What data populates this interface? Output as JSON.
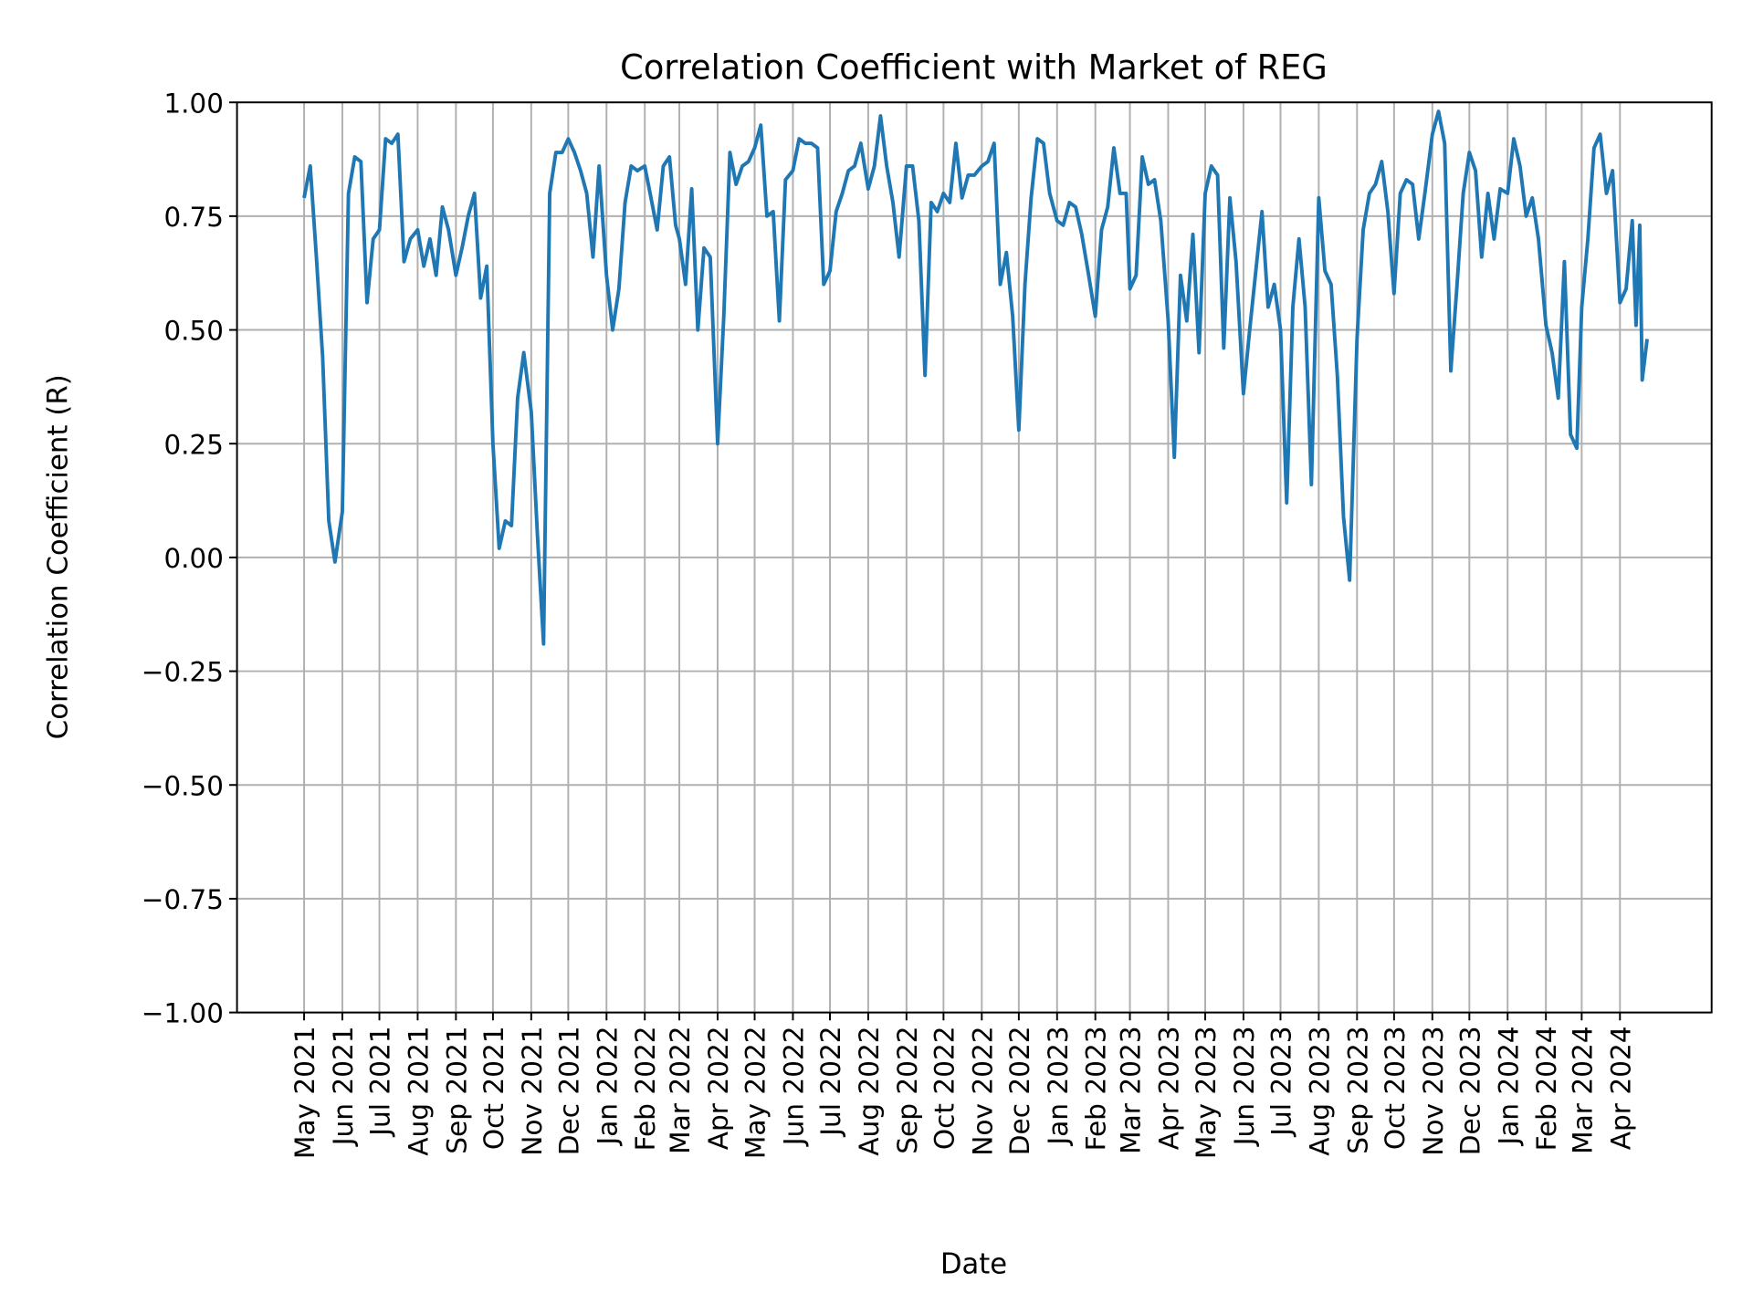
{
  "chart_data": {
    "type": "line",
    "title": "Correlation Coefficient with Market of REG",
    "xlabel": "Date",
    "ylabel": "Correlation Coefficient (R)",
    "ylim": [
      -1.0,
      1.0
    ],
    "yticks": [
      "1.00",
      "0.75",
      "0.50",
      "0.25",
      "0.00",
      "−0.25",
      "−0.50",
      "−0.75",
      "−1.00"
    ],
    "ytick_values": [
      1.0,
      0.75,
      0.5,
      0.25,
      0.0,
      -0.25,
      -0.5,
      -0.75,
      -1.0
    ],
    "xticks": [
      "May 2021",
      "Jun 2021",
      "Jul 2021",
      "Aug 2021",
      "Sep 2021",
      "Oct 2021",
      "Nov 2021",
      "Dec 2021",
      "Jan 2022",
      "Feb 2022",
      "Mar 2022",
      "Apr 2022",
      "May 2022",
      "Jun 2022",
      "Jul 2022",
      "Aug 2022",
      "Sep 2022",
      "Oct 2022",
      "Nov 2022",
      "Dec 2022",
      "Jan 2023",
      "Feb 2023",
      "Mar 2023",
      "Apr 2023",
      "May 2023",
      "Jun 2023",
      "Jul 2023",
      "Aug 2023",
      "Sep 2023",
      "Oct 2023",
      "Nov 2023",
      "Dec 2023",
      "Jan 2024",
      "Feb 2024",
      "Mar 2024",
      "Apr 2024"
    ],
    "xtick_dates": [
      "2021-05-01",
      "2021-06-01",
      "2021-07-01",
      "2021-08-01",
      "2021-09-01",
      "2021-10-01",
      "2021-11-01",
      "2021-12-01",
      "2022-01-01",
      "2022-02-01",
      "2022-03-01",
      "2022-04-01",
      "2022-05-01",
      "2022-06-01",
      "2022-07-01",
      "2022-08-01",
      "2022-09-01",
      "2022-10-01",
      "2022-11-01",
      "2022-12-01",
      "2023-01-01",
      "2023-02-01",
      "2023-03-01",
      "2023-04-01",
      "2023-05-01",
      "2023-06-01",
      "2023-07-01",
      "2023-08-01",
      "2023-09-01",
      "2023-10-01",
      "2023-11-01",
      "2023-12-01",
      "2024-01-01",
      "2024-02-01",
      "2024-03-01",
      "2024-04-01"
    ],
    "grid": true,
    "line_color": "#1f77b4",
    "points": [
      [
        "2021-05-01",
        0.79
      ],
      [
        "2021-05-06",
        0.86
      ],
      [
        "2021-05-11",
        0.66
      ],
      [
        "2021-05-16",
        0.44
      ],
      [
        "2021-05-21",
        0.08
      ],
      [
        "2021-05-26",
        -0.01
      ],
      [
        "2021-06-01",
        0.1
      ],
      [
        "2021-06-06",
        0.8
      ],
      [
        "2021-06-11",
        0.88
      ],
      [
        "2021-06-16",
        0.87
      ],
      [
        "2021-06-21",
        0.56
      ],
      [
        "2021-06-26",
        0.7
      ],
      [
        "2021-07-01",
        0.72
      ],
      [
        "2021-07-06",
        0.92
      ],
      [
        "2021-07-11",
        0.91
      ],
      [
        "2021-07-16",
        0.93
      ],
      [
        "2021-07-21",
        0.65
      ],
      [
        "2021-07-26",
        0.7
      ],
      [
        "2021-08-01",
        0.72
      ],
      [
        "2021-08-06",
        0.64
      ],
      [
        "2021-08-11",
        0.7
      ],
      [
        "2021-08-16",
        0.62
      ],
      [
        "2021-08-21",
        0.77
      ],
      [
        "2021-08-26",
        0.72
      ],
      [
        "2021-09-01",
        0.62
      ],
      [
        "2021-09-06",
        0.68
      ],
      [
        "2021-09-11",
        0.75
      ],
      [
        "2021-09-16",
        0.8
      ],
      [
        "2021-09-21",
        0.57
      ],
      [
        "2021-09-26",
        0.64
      ],
      [
        "2021-10-01",
        0.25
      ],
      [
        "2021-10-06",
        0.02
      ],
      [
        "2021-10-11",
        0.08
      ],
      [
        "2021-10-16",
        0.07
      ],
      [
        "2021-10-21",
        0.35
      ],
      [
        "2021-10-26",
        0.45
      ],
      [
        "2021-11-01",
        0.32
      ],
      [
        "2021-11-06",
        0.05
      ],
      [
        "2021-11-11",
        -0.19
      ],
      [
        "2021-11-16",
        0.8
      ],
      [
        "2021-11-21",
        0.89
      ],
      [
        "2021-11-26",
        0.89
      ],
      [
        "2021-12-01",
        0.92
      ],
      [
        "2021-12-06",
        0.89
      ],
      [
        "2021-12-11",
        0.85
      ],
      [
        "2021-12-16",
        0.8
      ],
      [
        "2021-12-21",
        0.66
      ],
      [
        "2021-12-26",
        0.86
      ],
      [
        "2022-01-01",
        0.62
      ],
      [
        "2022-01-06",
        0.5
      ],
      [
        "2022-01-11",
        0.59
      ],
      [
        "2022-01-16",
        0.78
      ],
      [
        "2022-01-21",
        0.86
      ],
      [
        "2022-01-26",
        0.85
      ],
      [
        "2022-02-01",
        0.86
      ],
      [
        "2022-02-06",
        0.79
      ],
      [
        "2022-02-11",
        0.72
      ],
      [
        "2022-02-16",
        0.86
      ],
      [
        "2022-02-21",
        0.88
      ],
      [
        "2022-02-26",
        0.73
      ],
      [
        "2022-03-01",
        0.7
      ],
      [
        "2022-03-06",
        0.6
      ],
      [
        "2022-03-11",
        0.81
      ],
      [
        "2022-03-16",
        0.5
      ],
      [
        "2022-03-21",
        0.68
      ],
      [
        "2022-03-26",
        0.66
      ],
      [
        "2022-04-01",
        0.25
      ],
      [
        "2022-04-06",
        0.53
      ],
      [
        "2022-04-11",
        0.89
      ],
      [
        "2022-04-16",
        0.82
      ],
      [
        "2022-04-21",
        0.86
      ],
      [
        "2022-04-26",
        0.87
      ],
      [
        "2022-05-01",
        0.9
      ],
      [
        "2022-05-06",
        0.95
      ],
      [
        "2022-05-11",
        0.75
      ],
      [
        "2022-05-16",
        0.76
      ],
      [
        "2022-05-21",
        0.52
      ],
      [
        "2022-05-26",
        0.83
      ],
      [
        "2022-06-01",
        0.85
      ],
      [
        "2022-06-06",
        0.92
      ],
      [
        "2022-06-11",
        0.91
      ],
      [
        "2022-06-16",
        0.91
      ],
      [
        "2022-06-21",
        0.9
      ],
      [
        "2022-06-26",
        0.6
      ],
      [
        "2022-07-01",
        0.63
      ],
      [
        "2022-07-06",
        0.76
      ],
      [
        "2022-07-11",
        0.8
      ],
      [
        "2022-07-16",
        0.85
      ],
      [
        "2022-07-21",
        0.86
      ],
      [
        "2022-07-26",
        0.91
      ],
      [
        "2022-08-01",
        0.81
      ],
      [
        "2022-08-06",
        0.86
      ],
      [
        "2022-08-11",
        0.97
      ],
      [
        "2022-08-16",
        0.86
      ],
      [
        "2022-08-21",
        0.78
      ],
      [
        "2022-08-26",
        0.66
      ],
      [
        "2022-09-01",
        0.86
      ],
      [
        "2022-09-06",
        0.86
      ],
      [
        "2022-09-11",
        0.74
      ],
      [
        "2022-09-16",
        0.4
      ],
      [
        "2022-09-21",
        0.78
      ],
      [
        "2022-09-26",
        0.76
      ],
      [
        "2022-10-01",
        0.8
      ],
      [
        "2022-10-06",
        0.78
      ],
      [
        "2022-10-11",
        0.91
      ],
      [
        "2022-10-16",
        0.79
      ],
      [
        "2022-10-21",
        0.84
      ],
      [
        "2022-10-26",
        0.84
      ],
      [
        "2022-11-01",
        0.86
      ],
      [
        "2022-11-06",
        0.87
      ],
      [
        "2022-11-11",
        0.91
      ],
      [
        "2022-11-16",
        0.6
      ],
      [
        "2022-11-21",
        0.67
      ],
      [
        "2022-11-26",
        0.53
      ],
      [
        "2022-12-01",
        0.28
      ],
      [
        "2022-12-06",
        0.6
      ],
      [
        "2022-12-11",
        0.79
      ],
      [
        "2022-12-16",
        0.92
      ],
      [
        "2022-12-21",
        0.91
      ],
      [
        "2022-12-26",
        0.8
      ],
      [
        "2023-01-01",
        0.74
      ],
      [
        "2023-01-06",
        0.73
      ],
      [
        "2023-01-11",
        0.78
      ],
      [
        "2023-01-16",
        0.77
      ],
      [
        "2023-01-21",
        0.71
      ],
      [
        "2023-01-26",
        0.63
      ],
      [
        "2023-02-01",
        0.53
      ],
      [
        "2023-02-06",
        0.72
      ],
      [
        "2023-02-11",
        0.77
      ],
      [
        "2023-02-16",
        0.9
      ],
      [
        "2023-02-21",
        0.8
      ],
      [
        "2023-02-26",
        0.8
      ],
      [
        "2023-03-01",
        0.59
      ],
      [
        "2023-03-06",
        0.62
      ],
      [
        "2023-03-11",
        0.88
      ],
      [
        "2023-03-16",
        0.82
      ],
      [
        "2023-03-21",
        0.83
      ],
      [
        "2023-03-26",
        0.74
      ],
      [
        "2023-04-01",
        0.52
      ],
      [
        "2023-04-06",
        0.22
      ],
      [
        "2023-04-11",
        0.62
      ],
      [
        "2023-04-16",
        0.52
      ],
      [
        "2023-04-21",
        0.71
      ],
      [
        "2023-04-26",
        0.45
      ],
      [
        "2023-05-01",
        0.8
      ],
      [
        "2023-05-06",
        0.86
      ],
      [
        "2023-05-11",
        0.84
      ],
      [
        "2023-05-16",
        0.46
      ],
      [
        "2023-05-21",
        0.79
      ],
      [
        "2023-05-26",
        0.65
      ],
      [
        "2023-06-01",
        0.36
      ],
      [
        "2023-06-06",
        0.5
      ],
      [
        "2023-06-11",
        0.63
      ],
      [
        "2023-06-16",
        0.76
      ],
      [
        "2023-06-21",
        0.55
      ],
      [
        "2023-06-26",
        0.6
      ],
      [
        "2023-07-01",
        0.5
      ],
      [
        "2023-07-06",
        0.12
      ],
      [
        "2023-07-11",
        0.55
      ],
      [
        "2023-07-16",
        0.7
      ],
      [
        "2023-07-21",
        0.55
      ],
      [
        "2023-07-26",
        0.16
      ],
      [
        "2023-08-01",
        0.79
      ],
      [
        "2023-08-06",
        0.63
      ],
      [
        "2023-08-11",
        0.6
      ],
      [
        "2023-08-16",
        0.4
      ],
      [
        "2023-08-21",
        0.09
      ],
      [
        "2023-08-26",
        -0.05
      ],
      [
        "2023-09-01",
        0.48
      ],
      [
        "2023-09-06",
        0.72
      ],
      [
        "2023-09-11",
        0.8
      ],
      [
        "2023-09-16",
        0.82
      ],
      [
        "2023-09-21",
        0.87
      ],
      [
        "2023-09-26",
        0.76
      ],
      [
        "2023-10-01",
        0.58
      ],
      [
        "2023-10-06",
        0.8
      ],
      [
        "2023-10-11",
        0.83
      ],
      [
        "2023-10-16",
        0.82
      ],
      [
        "2023-10-21",
        0.7
      ],
      [
        "2023-10-26",
        0.8
      ],
      [
        "2023-11-01",
        0.93
      ],
      [
        "2023-11-06",
        0.98
      ],
      [
        "2023-11-11",
        0.91
      ],
      [
        "2023-11-16",
        0.41
      ],
      [
        "2023-11-21",
        0.6
      ],
      [
        "2023-11-26",
        0.8
      ],
      [
        "2023-12-01",
        0.89
      ],
      [
        "2023-12-06",
        0.85
      ],
      [
        "2023-12-11",
        0.66
      ],
      [
        "2023-12-16",
        0.8
      ],
      [
        "2023-12-21",
        0.7
      ],
      [
        "2023-12-26",
        0.81
      ],
      [
        "2024-01-01",
        0.8
      ],
      [
        "2024-01-06",
        0.92
      ],
      [
        "2024-01-11",
        0.86
      ],
      [
        "2024-01-16",
        0.75
      ],
      [
        "2024-01-21",
        0.79
      ],
      [
        "2024-01-26",
        0.7
      ],
      [
        "2024-02-01",
        0.51
      ],
      [
        "2024-02-06",
        0.45
      ],
      [
        "2024-02-11",
        0.35
      ],
      [
        "2024-02-16",
        0.65
      ],
      [
        "2024-02-21",
        0.27
      ],
      [
        "2024-02-26",
        0.24
      ],
      [
        "2024-03-01",
        0.55
      ],
      [
        "2024-03-06",
        0.7
      ],
      [
        "2024-03-11",
        0.9
      ],
      [
        "2024-03-16",
        0.93
      ],
      [
        "2024-03-21",
        0.8
      ],
      [
        "2024-03-26",
        0.85
      ],
      [
        "2024-04-01",
        0.56
      ],
      [
        "2024-04-06",
        0.59
      ],
      [
        "2024-04-11",
        0.74
      ],
      [
        "2024-04-14",
        0.51
      ],
      [
        "2024-04-17",
        0.73
      ],
      [
        "2024-04-19",
        0.39
      ],
      [
        "2024-04-23",
        0.48
      ]
    ]
  }
}
